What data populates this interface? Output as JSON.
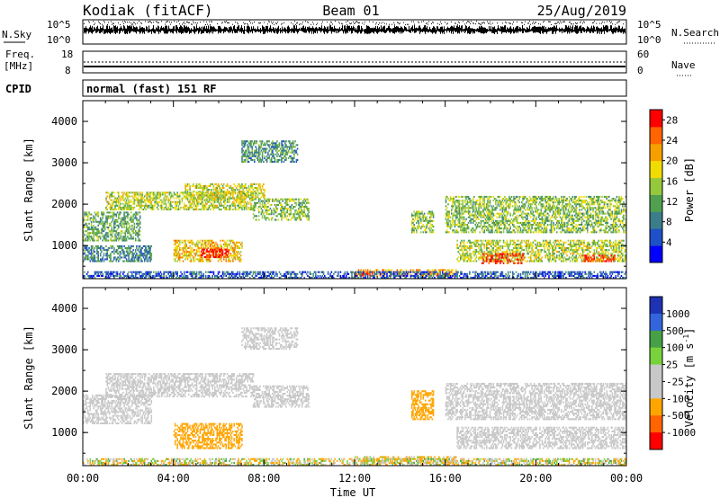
{
  "header": {
    "station": "Kodiak (fitACF)",
    "beam": "Beam 01",
    "date": "25/Aug/2019"
  },
  "strip": {
    "nsky_label": "N.Sky",
    "nsky_ticks": [
      "10^5",
      "10^0"
    ],
    "nsearch_label": "N.Search",
    "nsearch_ticks": [
      "10^5",
      "10^0"
    ],
    "freq_label": "Freq.",
    "freq_unit": "[MHz]",
    "freq_ticks": [
      "18",
      "8"
    ],
    "nave_label": "Nave",
    "nave_ticks": [
      "60",
      "0"
    ],
    "cpid_label": "CPID",
    "cpid_text": "normal (fast) 151 RF"
  },
  "colors": {
    "power_scale": [
      "#0000ff",
      "#1e50c8",
      "#3c7d8c",
      "#50a050",
      "#96c83c",
      "#f0dc00",
      "#f5a000",
      "#ff6400",
      "#ff0000"
    ],
    "velocity_scale": [
      "#1e32b4",
      "#3264dc",
      "#46a046",
      "#78d23c",
      "#c8c8c8",
      "#c8c8c8",
      "#ffa500",
      "#ff6400",
      "#ff0000"
    ]
  },
  "chart_data": [
    {
      "type": "heatmap",
      "panel": "power",
      "ylabel": "Slant Range [km]",
      "xlabel": "",
      "xlim": [
        "00:00",
        "24:00"
      ],
      "ylim": [
        200,
        4500
      ],
      "yticks": [
        "1000",
        "2000",
        "3000",
        "4000"
      ],
      "xticks": [
        "00:00",
        "04:00",
        "08:00",
        "12:00",
        "16:00",
        "20:00",
        "00:00"
      ],
      "colorbar": {
        "label": "Power [dB]",
        "ticks": [
          "4",
          "8",
          "12",
          "16",
          "20",
          "24",
          "28"
        ],
        "range": [
          0,
          30
        ]
      },
      "echo_regions": [
        {
          "t0": 0.0,
          "t1": 2.5,
          "r0": 1100,
          "r1": 1800,
          "value": 12
        },
        {
          "t0": 0.0,
          "t1": 3.0,
          "r0": 600,
          "r1": 1000,
          "value": 9
        },
        {
          "t0": 1.0,
          "t1": 7.5,
          "r0": 1850,
          "r1": 2300,
          "value": 16
        },
        {
          "t0": 4.5,
          "t1": 8.0,
          "r0": 2100,
          "r1": 2500,
          "value": 17
        },
        {
          "t0": 4.0,
          "t1": 7.0,
          "r0": 600,
          "r1": 1100,
          "value": 20
        },
        {
          "t0": 5.2,
          "t1": 6.4,
          "r0": 700,
          "r1": 900,
          "value": 29
        },
        {
          "t0": 7.5,
          "t1": 10.0,
          "r0": 1600,
          "r1": 2100,
          "value": 14
        },
        {
          "t0": 7.0,
          "t1": 9.5,
          "r0": 3000,
          "r1": 3500,
          "value": 10
        },
        {
          "t0": 12.0,
          "t1": 16.5,
          "r0": 250,
          "r1": 400,
          "value": 22
        },
        {
          "t0": 12.2,
          "t1": 12.8,
          "r0": 250,
          "r1": 350,
          "value": 28
        },
        {
          "t0": 14.5,
          "t1": 15.5,
          "r0": 1300,
          "r1": 1800,
          "value": 14
        },
        {
          "t0": 16.0,
          "t1": 24.0,
          "r0": 1300,
          "r1": 2200,
          "value": 14
        },
        {
          "t0": 16.5,
          "t1": 24.0,
          "r0": 600,
          "r1": 1100,
          "value": 16
        },
        {
          "t0": 17.5,
          "t1": 19.5,
          "r0": 550,
          "r1": 800,
          "value": 27
        },
        {
          "t0": 22.0,
          "t1": 23.5,
          "r0": 600,
          "r1": 750,
          "value": 26
        },
        {
          "t0": 0.0,
          "t1": 24.0,
          "r0": 200,
          "r1": 350,
          "value": 6
        }
      ]
    },
    {
      "type": "heatmap",
      "panel": "velocity",
      "ylabel": "Slant Range [km]",
      "xlabel": "Time UT",
      "xlim": [
        "00:00",
        "24:00"
      ],
      "ylim": [
        200,
        4500
      ],
      "yticks": [
        "1000",
        "2000",
        "3000",
        "4000"
      ],
      "xticks": [
        "00:00",
        "04:00",
        "08:00",
        "12:00",
        "16:00",
        "20:00",
        "00:00"
      ],
      "colorbar": {
        "label": "Velocity [m s",
        "label_exponent": "-1",
        "label_close": "]",
        "ticks": [
          "1000",
          "500",
          "100",
          "25",
          "-25",
          "-100",
          "-500",
          "-1000"
        ]
      },
      "echo_regions": [
        {
          "t0": 0.0,
          "t1": 3.0,
          "r0": 1200,
          "r1": 1900,
          "value": 0
        },
        {
          "t0": 1.0,
          "t1": 7.5,
          "r0": 1850,
          "r1": 2400,
          "value": 0
        },
        {
          "t0": 4.0,
          "t1": 7.0,
          "r0": 600,
          "r1": 1200,
          "value": -300
        },
        {
          "t0": 7.5,
          "t1": 10.0,
          "r0": 1600,
          "r1": 2100,
          "value": 0
        },
        {
          "t0": 7.0,
          "t1": 9.5,
          "r0": 3000,
          "r1": 3500,
          "value": 0
        },
        {
          "t0": 12.0,
          "t1": 16.5,
          "r0": 250,
          "r1": 400,
          "value": -100
        },
        {
          "t0": 14.5,
          "t1": 15.5,
          "r0": 1300,
          "r1": 2000,
          "value": -300
        },
        {
          "t0": 16.0,
          "t1": 24.0,
          "r0": 1300,
          "r1": 2200,
          "value": 0
        },
        {
          "t0": 16.5,
          "t1": 24.0,
          "r0": 600,
          "r1": 1100,
          "value": 0
        },
        {
          "t0": 0.0,
          "t1": 24.0,
          "r0": 200,
          "r1": 350,
          "value": -50
        }
      ]
    }
  ]
}
